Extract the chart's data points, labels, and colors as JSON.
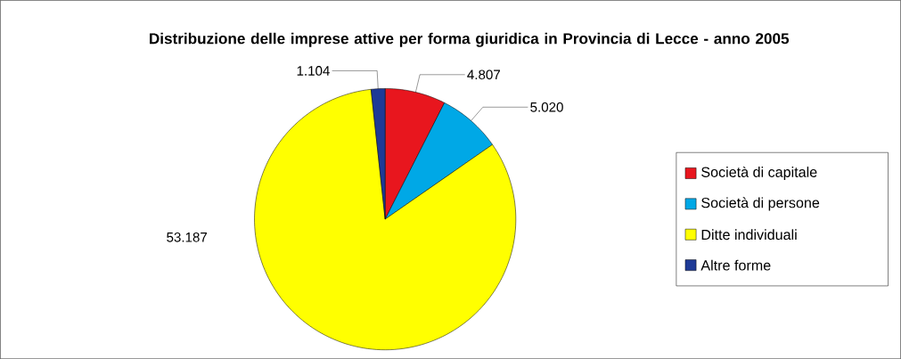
{
  "chart_data": {
    "type": "pie",
    "title": "Distribuzione delle imprese attive per forma giuridica in Provincia di Lecce - anno 2005",
    "categories": [
      "Società di capitale",
      "Società di persone",
      "Ditte individuali",
      "Altre forme"
    ],
    "values": [
      4807,
      5020,
      53187,
      1104
    ],
    "value_labels": [
      "4.807",
      "5.020",
      "53.187",
      "1.104"
    ],
    "colors": [
      "#e8161e",
      "#00a8e6",
      "#ffff00",
      "#1e3a96"
    ],
    "legend": "right"
  }
}
